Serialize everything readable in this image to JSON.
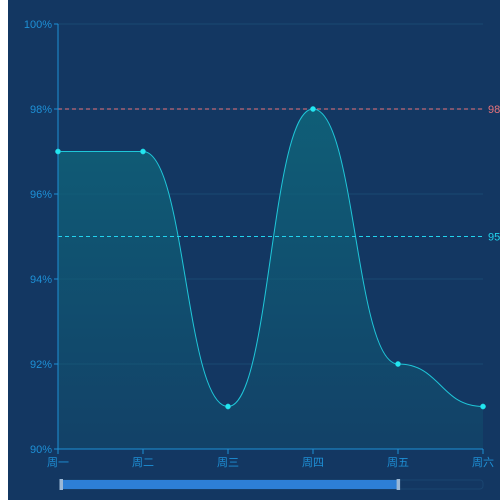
{
  "chart_data": {
    "type": "line",
    "categories": [
      "周一",
      "周二",
      "周三",
      "周四",
      "周五",
      "周六"
    ],
    "series": [
      {
        "values": [
          97,
          97,
          91,
          98,
          92,
          91
        ]
      }
    ],
    "ylim": [
      90,
      100
    ],
    "yticks": [
      90,
      92,
      94,
      96,
      98,
      100
    ],
    "ytick_labels": [
      "90%",
      "92%",
      "94%",
      "96%",
      "98%",
      "100%"
    ],
    "mark_lines": [
      {
        "value": 98,
        "label": "98",
        "color": "#e8737b"
      },
      {
        "value": 95,
        "label": "95",
        "color": "#22d3ee"
      }
    ],
    "grid": true,
    "smooth": true,
    "area_fill": true,
    "data_zoom": {
      "start_fraction": 0.0,
      "end_fraction": 0.8
    },
    "colors": {
      "background": "#133762",
      "axis": "#1e90d6",
      "grid": "#1a4a72",
      "line": "#1fc6d8",
      "point": "#22e6f0",
      "area": "#0f6078",
      "zoom_fill": "#2d7fd6",
      "zoom_track": "#1a4570",
      "zoom_handle": "#9bb8d6"
    }
  }
}
